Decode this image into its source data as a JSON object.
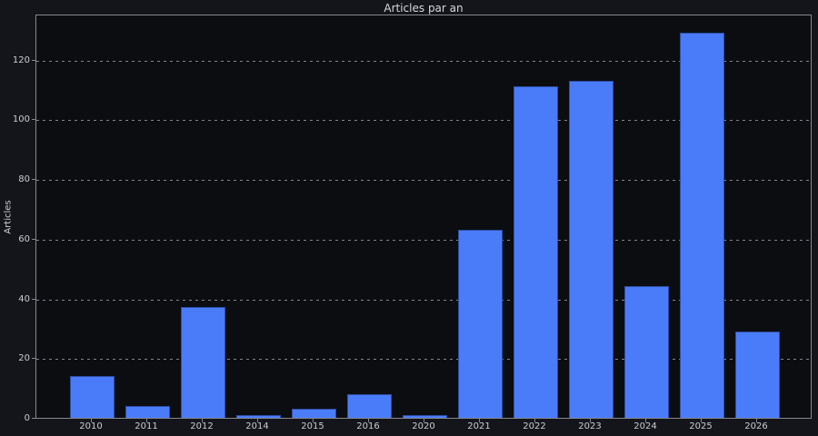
{
  "chart_data": {
    "type": "bar",
    "title": "Articles par an",
    "xlabel": "",
    "ylabel": "Articles",
    "categories": [
      "2010",
      "2011",
      "2012",
      "2014",
      "2015",
      "2016",
      "2020",
      "2021",
      "2022",
      "2023",
      "2024",
      "2025",
      "2026"
    ],
    "values": [
      14,
      4,
      37,
      1,
      3,
      8,
      1,
      63,
      111,
      113,
      44,
      129,
      29
    ],
    "yticks": [
      0,
      20,
      40,
      60,
      80,
      100,
      120
    ],
    "ylim": [
      0,
      135.45
    ],
    "grid": "horizontal-dashed",
    "legend": "none",
    "bar_color": "#4a7cfa",
    "figure_background": "#14151b",
    "plot_background": "#0c0d11",
    "axis_color": "#85878f",
    "text_color": "#c9ccd2"
  }
}
